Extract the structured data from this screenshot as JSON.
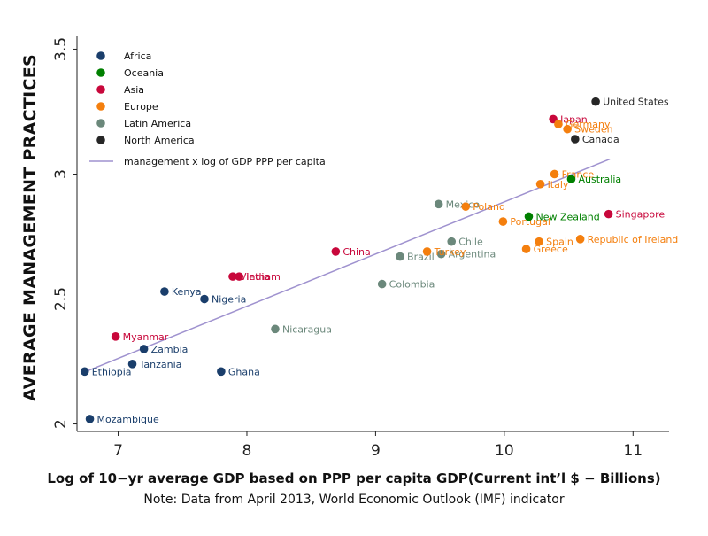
{
  "chart_data": {
    "type": "scatter",
    "title": "",
    "xlabel": "Log of 10−yr average GDP based on PPP per capita GDP(Current int’l $ − Billions)",
    "ylabel": "AVERAGE MANAGEMENT PRACTICES",
    "note": "Note: Data from April 2013, World Economic Outlook (IMF) indicator",
    "xlim": [
      6.68,
      11.28
    ],
    "ylim": [
      1.97,
      3.53
    ],
    "xticks": [
      7,
      8,
      9,
      10,
      11
    ],
    "xtick_labels": [
      "7",
      "8",
      "9",
      "10",
      "11"
    ],
    "yticks": [
      2,
      2.5,
      3,
      3.5
    ],
    "ytick_labels": [
      "2",
      "2.5",
      "3",
      "3.5"
    ],
    "grid": false,
    "legend_position": "top-left",
    "groups": [
      {
        "name": "Africa",
        "color": "#1a3e6b"
      },
      {
        "name": "Oceania",
        "color": "#008000"
      },
      {
        "name": "Asia",
        "color": "#c8073b"
      },
      {
        "name": "Europe",
        "color": "#f47f0e"
      },
      {
        "name": "Latin America",
        "color": "#6b887b"
      },
      {
        "name": "North America",
        "color": "#262626"
      }
    ],
    "fit_line": {
      "name": "management x log of GDP PPP per capita",
      "color": "#9f92cf",
      "x": [
        6.75,
        10.82
      ],
      "y": [
        2.21,
        3.06
      ]
    },
    "points": [
      {
        "label": "Ethiopia",
        "x": 6.74,
        "y": 2.21,
        "group": "Africa"
      },
      {
        "label": "Mozambique",
        "x": 6.78,
        "y": 2.02,
        "group": "Africa"
      },
      {
        "label": "Tanzania",
        "x": 7.11,
        "y": 2.24,
        "group": "Africa"
      },
      {
        "label": "Zambia",
        "x": 7.2,
        "y": 2.3,
        "group": "Africa"
      },
      {
        "label": "Kenya",
        "x": 7.36,
        "y": 2.53,
        "group": "Africa"
      },
      {
        "label": "Nigeria",
        "x": 7.67,
        "y": 2.5,
        "group": "Africa"
      },
      {
        "label": "Ghana",
        "x": 7.8,
        "y": 2.21,
        "group": "Africa"
      },
      {
        "label": "Myanmar",
        "x": 6.98,
        "y": 2.35,
        "group": "Asia"
      },
      {
        "label": "Vietnam",
        "x": 7.89,
        "y": 2.59,
        "group": "Asia"
      },
      {
        "label": "India",
        "x": 7.94,
        "y": 2.59,
        "group": "Asia"
      },
      {
        "label": "China",
        "x": 8.69,
        "y": 2.69,
        "group": "Asia"
      },
      {
        "label": "Japan",
        "x": 10.38,
        "y": 3.22,
        "group": "Asia"
      },
      {
        "label": "Singapore",
        "x": 10.81,
        "y": 2.84,
        "group": "Asia"
      },
      {
        "label": "Nicaragua",
        "x": 8.22,
        "y": 2.38,
        "group": "Latin America"
      },
      {
        "label": "Colombia",
        "x": 9.05,
        "y": 2.56,
        "group": "Latin America"
      },
      {
        "label": "Brazil",
        "x": 9.19,
        "y": 2.67,
        "group": "Latin America"
      },
      {
        "label": "Argentina",
        "x": 9.51,
        "y": 2.68,
        "group": "Latin America"
      },
      {
        "label": "Chile",
        "x": 9.59,
        "y": 2.73,
        "group": "Latin America"
      },
      {
        "label": "Mexico",
        "x": 9.49,
        "y": 2.88,
        "group": "Latin America"
      },
      {
        "label": "Turkey",
        "x": 9.4,
        "y": 2.69,
        "group": "Europe"
      },
      {
        "label": "Poland",
        "x": 9.7,
        "y": 2.87,
        "group": "Europe"
      },
      {
        "label": "Portugal",
        "x": 9.99,
        "y": 2.81,
        "group": "Europe"
      },
      {
        "label": "Greece",
        "x": 10.17,
        "y": 2.7,
        "group": "Europe"
      },
      {
        "label": "Spain",
        "x": 10.27,
        "y": 2.73,
        "group": "Europe"
      },
      {
        "label": "Italy",
        "x": 10.28,
        "y": 2.96,
        "group": "Europe"
      },
      {
        "label": "France",
        "x": 10.39,
        "y": 3.0,
        "group": "Europe"
      },
      {
        "label": "Germany",
        "x": 10.42,
        "y": 3.2,
        "group": "Europe"
      },
      {
        "label": "Sweden",
        "x": 10.49,
        "y": 3.18,
        "group": "Europe"
      },
      {
        "label": "Republic of Ireland",
        "x": 10.59,
        "y": 2.74,
        "group": "Europe"
      },
      {
        "label": "New Zealand",
        "x": 10.19,
        "y": 2.83,
        "group": "Oceania"
      },
      {
        "label": "Australia",
        "x": 10.52,
        "y": 2.98,
        "group": "Oceania"
      },
      {
        "label": "Canada",
        "x": 10.55,
        "y": 3.14,
        "group": "North America"
      },
      {
        "label": "United States",
        "x": 10.71,
        "y": 3.29,
        "group": "North America"
      }
    ]
  }
}
